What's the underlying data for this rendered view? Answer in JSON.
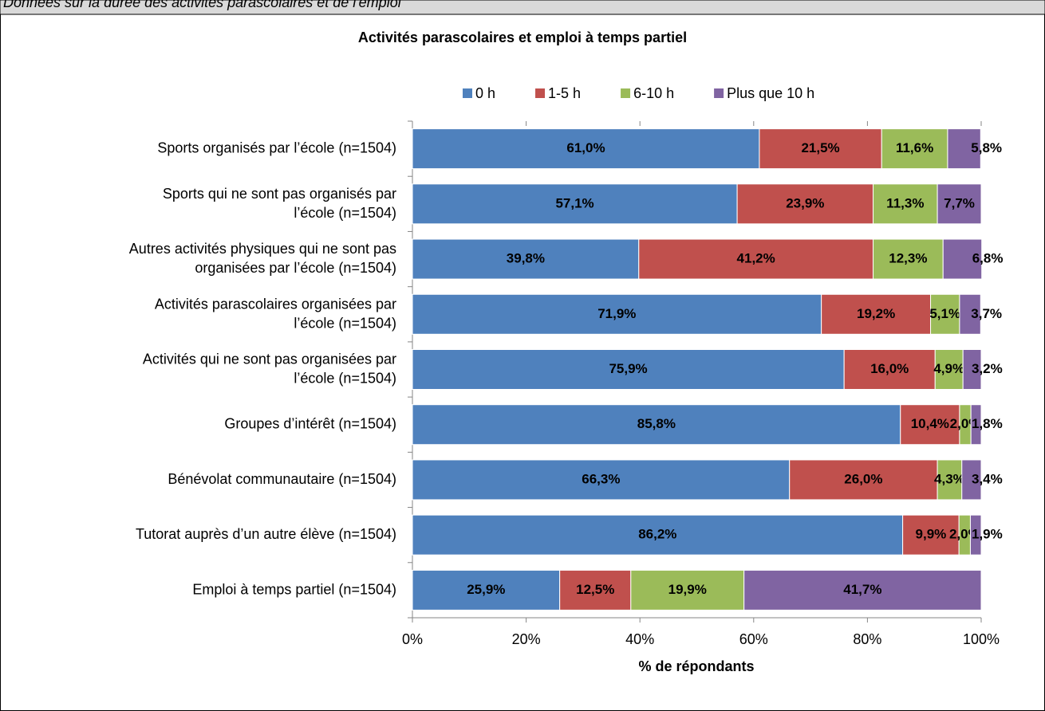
{
  "header": {
    "text": "Données sur la durée des activités parascolaires et de l'emploi"
  },
  "chart_data": {
    "type": "stacked-bar-horizontal",
    "title": "Activités parascolaires et emploi à temps partiel",
    "x_label": "% de répondants",
    "categories": [
      "Sports organisés par l’école (n=1504)",
      "Sports qui ne sont pas organisés par\nl’école  (n=1504)",
      "Autres activités physiques qui ne sont pas\norganisées par l’école (n=1504)",
      "Activités parascolaires organisées par\nl’école (n=1504)",
      "Activités qui ne sont pas organisées par\nl’école (n=1504)",
      "Groupes d’intérêt (n=1504)",
      "Bénévolat communautaire (n=1504)",
      "Tutorat auprès d’un autre élève (n=1504)",
      "Emploi à temps partiel (n=1504)"
    ],
    "series": [
      {
        "name": "0 h",
        "color": "#4f81bd",
        "values": [
          61.0,
          57.1,
          39.8,
          71.9,
          75.9,
          85.8,
          66.3,
          86.2,
          25.9
        ],
        "value_labels": [
          "61,0%",
          "57,1%",
          "39,8%",
          "71,9%",
          "75,9%",
          "85,8%",
          "66,3%",
          "86,2%",
          "25,9%"
        ]
      },
      {
        "name": "1-5 h",
        "color": "#c0504d",
        "values": [
          21.5,
          23.9,
          41.2,
          19.2,
          16.0,
          10.4,
          26.0,
          9.9,
          12.5
        ],
        "value_labels": [
          "21,5%",
          "23,9%",
          "41,2%",
          "19,2%",
          "16,0%",
          "10,4%",
          "26,0%",
          "9,9%",
          "12,5%"
        ]
      },
      {
        "name": "6-10 h",
        "color": "#9bbb59",
        "values": [
          11.6,
          11.3,
          12.3,
          5.1,
          4.9,
          2.0,
          4.3,
          2.0,
          19.9
        ],
        "value_labels": [
          "11,6%",
          "11,3%",
          "12,3%",
          "5,1%",
          "4,9%",
          "2,0%",
          "4,3%",
          "2,0%",
          "19,9%"
        ]
      },
      {
        "name": "Plus que 10 h",
        "color": "#8064a2",
        "values": [
          5.8,
          7.7,
          6.8,
          3.7,
          3.2,
          1.8,
          3.4,
          1.9,
          41.7
        ],
        "value_labels": [
          "5,8%",
          "7,7%",
          "6,8%",
          "3,7%",
          "3,2%",
          "1,8%",
          "3,4%",
          "1,9%",
          "41,7%"
        ]
      }
    ],
    "xlim": [
      0,
      100
    ],
    "xticks": [
      {
        "value": 0,
        "label": "0%"
      },
      {
        "value": 20,
        "label": "20%"
      },
      {
        "value": 40,
        "label": "40%"
      },
      {
        "value": 60,
        "label": "60%"
      },
      {
        "value": 80,
        "label": "80%"
      },
      {
        "value": 100,
        "label": "100%"
      }
    ],
    "legend": "top"
  }
}
